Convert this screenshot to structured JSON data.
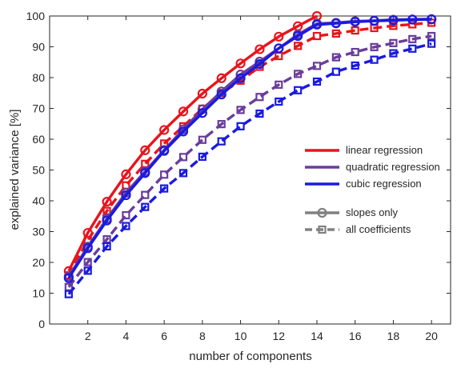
{
  "chart_data": {
    "type": "line",
    "title": "",
    "xlabel": "number of components",
    "ylabel": "explained variance [%]",
    "xlim": [
      0,
      21
    ],
    "ylim": [
      0,
      100
    ],
    "xticks": [
      2,
      4,
      6,
      8,
      10,
      12,
      14,
      16,
      18,
      20
    ],
    "yticks": [
      0,
      10,
      20,
      30,
      40,
      50,
      60,
      70,
      80,
      90,
      100
    ],
    "grid": false,
    "legend_position": "right",
    "series": [
      {
        "name": "linear regression",
        "variant": "slopes only",
        "color": "#e8141c",
        "marker": "circle",
        "linestyle": "solid",
        "x": [
          1,
          2,
          3,
          4,
          5,
          6,
          7,
          8,
          9,
          10,
          11,
          12,
          13,
          14
        ],
        "y": [
          17.2,
          29.6,
          39.7,
          48.6,
          56.4,
          63.0,
          69.0,
          74.8,
          79.8,
          84.6,
          89.2,
          93.3,
          96.7,
          100.0
        ]
      },
      {
        "name": "linear regression",
        "variant": "all coefficients",
        "color": "#e8141c",
        "marker": "square",
        "linestyle": "dashed",
        "x": [
          1,
          2,
          3,
          4,
          5,
          6,
          7,
          8,
          9,
          10,
          11,
          12,
          13,
          14,
          15,
          16,
          17,
          18,
          19,
          20
        ],
        "y": [
          15.8,
          27.2,
          36.7,
          45.0,
          52.0,
          58.6,
          64.2,
          69.9,
          75.0,
          79.0,
          83.5,
          87.0,
          90.3,
          93.5,
          94.3,
          95.3,
          96.1,
          96.8,
          97.3,
          97.8
        ]
      },
      {
        "name": "quadratic regression",
        "variant": "slopes only",
        "color": "#6a3d9a",
        "marker": "circle",
        "linestyle": "solid",
        "x": [
          1,
          2,
          3,
          4,
          5,
          6,
          7,
          8,
          9,
          10,
          11,
          12,
          13,
          14,
          15,
          16,
          17,
          18,
          19,
          20
        ],
        "y": [
          15.5,
          25.1,
          34.2,
          42.6,
          49.5,
          56.5,
          63.2,
          69.7,
          75.5,
          81.0,
          85.2,
          89.5,
          94.0,
          97.5,
          97.8,
          98.3,
          98.5,
          98.8,
          98.9,
          99.0
        ]
      },
      {
        "name": "quadratic regression",
        "variant": "all coefficients",
        "color": "#6a3d9a",
        "marker": "square",
        "linestyle": "dashed",
        "x": [
          1,
          2,
          3,
          4,
          5,
          6,
          7,
          8,
          9,
          10,
          11,
          12,
          13,
          14,
          15,
          16,
          17,
          18,
          19,
          20
        ],
        "y": [
          12.0,
          20.1,
          27.5,
          35.3,
          41.9,
          48.5,
          54.2,
          59.8,
          64.9,
          69.5,
          73.7,
          77.7,
          81.2,
          83.8,
          86.6,
          88.3,
          89.9,
          91.2,
          92.5,
          93.5
        ]
      },
      {
        "name": "cubic regression",
        "variant": "slopes only",
        "color": "#1a1ae0",
        "marker": "circle",
        "linestyle": "solid",
        "x": [
          1,
          2,
          3,
          4,
          5,
          6,
          7,
          8,
          9,
          10,
          11,
          12,
          13,
          14,
          15,
          16,
          17,
          18,
          19,
          20
        ],
        "y": [
          14.9,
          24.6,
          33.6,
          41.8,
          49.0,
          56.2,
          62.5,
          68.5,
          74.5,
          79.8,
          84.4,
          89.5,
          93.5,
          97.2,
          97.6,
          98.1,
          98.4,
          98.6,
          98.8,
          98.9
        ]
      },
      {
        "name": "cubic regression",
        "variant": "all coefficients",
        "color": "#1a1ae0",
        "marker": "square",
        "linestyle": "dashed",
        "x": [
          1,
          2,
          3,
          4,
          5,
          6,
          7,
          8,
          9,
          10,
          11,
          12,
          13,
          14,
          15,
          16,
          17,
          18,
          19,
          20
        ],
        "y": [
          9.7,
          17.3,
          25.2,
          31.8,
          38.0,
          44.0,
          49.0,
          54.3,
          59.3,
          64.2,
          68.3,
          72.2,
          75.9,
          78.7,
          81.9,
          83.9,
          85.8,
          87.9,
          89.4,
          91.0
        ]
      }
    ],
    "legend": {
      "color_entries": [
        {
          "label": "linear regression",
          "color": "#e8141c"
        },
        {
          "label": "quadratic regression",
          "color": "#6a3d9a"
        },
        {
          "label": "cubic regression",
          "color": "#1a1ae0"
        }
      ],
      "style_entries": [
        {
          "label": "slopes only",
          "color": "#808080",
          "marker": "circle",
          "linestyle": "solid"
        },
        {
          "label": "all coefficients",
          "color": "#808080",
          "marker": "square",
          "linestyle": "dashed"
        }
      ]
    }
  }
}
